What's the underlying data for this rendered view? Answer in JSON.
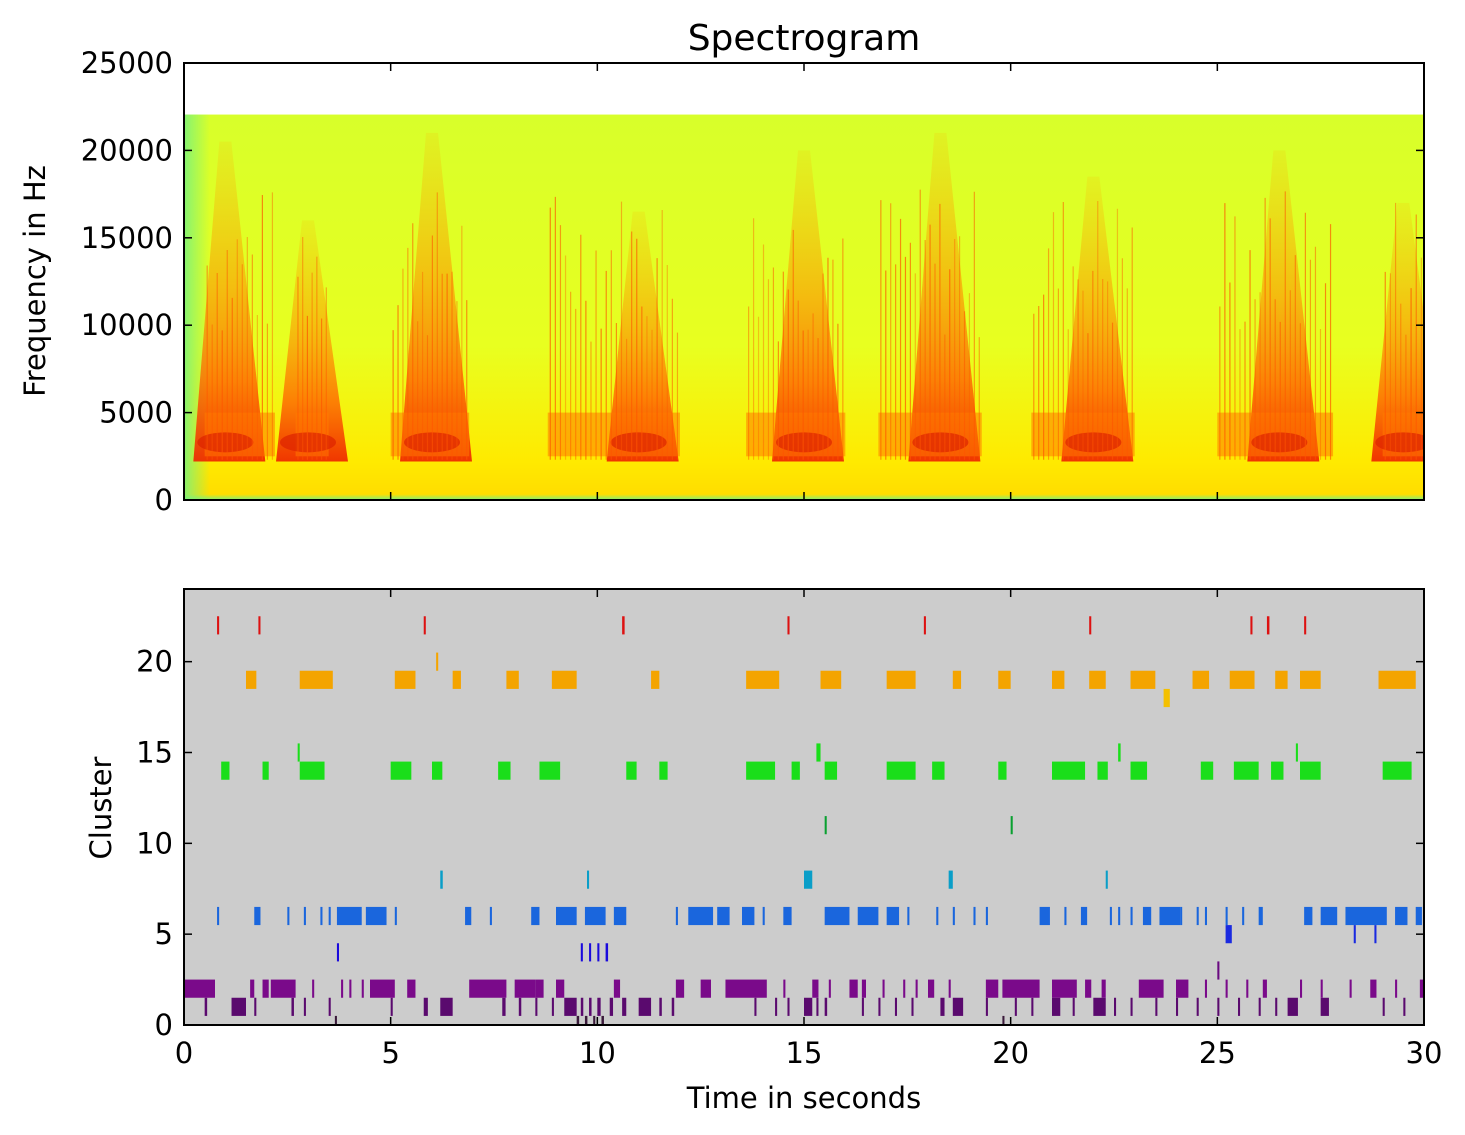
{
  "chart_data": [
    {
      "type": "heatmap",
      "title": "Spectrogram",
      "xlabel": "",
      "ylabel": "Frequency in Hz",
      "xlim": [
        0,
        30
      ],
      "ylim": [
        0,
        25000
      ],
      "max_frequency": 22050,
      "yticks": [
        0,
        5000,
        10000,
        15000,
        20000,
        25000
      ],
      "yticklabels": [
        "0",
        "5000",
        "10000",
        "15000",
        "20000",
        "25000"
      ],
      "colormap": [
        "#7cf27a",
        "#ddff22",
        "#ffee00",
        "#ff9900",
        "#ee3300",
        "#cc0000"
      ],
      "background_level": "#ddff22",
      "songs": [
        {
          "start": 0.5,
          "end": 2.2,
          "peak_time": 1.0,
          "peak_freq": 20500
        },
        {
          "start": 2.7,
          "end": 3.5,
          "peak_time": 3.0,
          "peak_freq": 16000
        },
        {
          "start": 5.0,
          "end": 6.9,
          "peak_time": 6.0,
          "peak_freq": 21000
        },
        {
          "start": 8.8,
          "end": 12.0,
          "peak_time": 11.0,
          "peak_freq": 16500
        },
        {
          "start": 13.6,
          "end": 16.0,
          "peak_time": 15.0,
          "peak_freq": 20000
        },
        {
          "start": 16.8,
          "end": 19.3,
          "peak_time": 18.3,
          "peak_freq": 21000
        },
        {
          "start": 20.5,
          "end": 23.0,
          "peak_time": 22.0,
          "peak_freq": 18500
        },
        {
          "start": 25.0,
          "end": 27.8,
          "peak_time": 26.5,
          "peak_freq": 20000
        },
        {
          "start": 29.0,
          "end": 30.0,
          "peak_time": 29.5,
          "peak_freq": 17000
        }
      ]
    },
    {
      "type": "scatter",
      "title": "",
      "xlabel": "Time in seconds",
      "ylabel": "Cluster",
      "xlim": [
        0,
        30
      ],
      "ylim": [
        0,
        24
      ],
      "xticks": [
        0,
        5,
        10,
        15,
        20,
        25,
        30
      ],
      "xticklabels": [
        "0",
        "5",
        "10",
        "15",
        "20",
        "25",
        "30"
      ],
      "yticks": [
        0,
        5,
        10,
        15,
        20
      ],
      "yticklabels": [
        "0",
        "5",
        "10",
        "15",
        "20"
      ],
      "background": "#cccccc",
      "series": [
        {
          "cluster": 0,
          "color": "#3a1a3a",
          "events": [
            [
              3.65,
              0.05
            ],
            [
              9.5,
              0.06
            ],
            [
              9.7,
              0.06
            ],
            [
              9.9,
              0.05
            ],
            [
              10.1,
              0.06
            ],
            [
              19.8,
              0.05
            ]
          ]
        },
        {
          "cluster": 1,
          "color": "#5a0a6e",
          "events": [
            [
              0.5,
              0.06
            ],
            [
              1.15,
              0.35
            ],
            [
              1.7,
              0.05
            ],
            [
              2.6,
              0.06
            ],
            [
              2.9,
              0.05
            ],
            [
              3.5,
              0.05
            ],
            [
              5.0,
              0.05
            ],
            [
              5.8,
              0.1
            ],
            [
              6.2,
              0.3
            ],
            [
              7.7,
              0.08
            ],
            [
              8.1,
              0.06
            ],
            [
              8.5,
              0.05
            ],
            [
              8.9,
              0.05
            ],
            [
              9.2,
              0.3
            ],
            [
              9.6,
              0.06
            ],
            [
              9.8,
              0.06
            ],
            [
              10.0,
              0.08
            ],
            [
              10.3,
              0.08
            ],
            [
              10.6,
              0.1
            ],
            [
              11.0,
              0.3
            ],
            [
              11.5,
              0.06
            ],
            [
              11.8,
              0.06
            ],
            [
              13.8,
              0.05
            ],
            [
              14.3,
              0.05
            ],
            [
              14.6,
              0.05
            ],
            [
              15.0,
              0.2
            ],
            [
              15.3,
              0.05
            ],
            [
              15.5,
              0.06
            ],
            [
              16.4,
              0.05
            ],
            [
              16.8,
              0.05
            ],
            [
              17.2,
              0.05
            ],
            [
              17.6,
              0.05
            ],
            [
              18.3,
              0.1
            ],
            [
              18.6,
              0.25
            ],
            [
              19.4,
              0.05
            ],
            [
              20.1,
              0.05
            ],
            [
              20.5,
              0.05
            ],
            [
              21.0,
              0.2
            ],
            [
              21.5,
              0.05
            ],
            [
              22.0,
              0.3
            ],
            [
              22.5,
              0.05
            ],
            [
              22.9,
              0.05
            ],
            [
              23.5,
              0.05
            ],
            [
              24.0,
              0.05
            ],
            [
              24.5,
              0.05
            ],
            [
              25.0,
              0.05
            ],
            [
              25.5,
              0.05
            ],
            [
              26.0,
              0.05
            ],
            [
              26.4,
              0.05
            ],
            [
              26.7,
              0.25
            ],
            [
              27.5,
              0.2
            ],
            [
              29.0,
              0.05
            ],
            [
              29.5,
              0.05
            ]
          ]
        },
        {
          "cluster": 2,
          "color": "#7a0a8a",
          "events": [
            [
              0.0,
              0.75
            ],
            [
              1.6,
              0.1
            ],
            [
              1.9,
              0.15
            ],
            [
              2.1,
              0.6
            ],
            [
              3.1,
              0.05
            ],
            [
              3.8,
              0.05
            ],
            [
              4.0,
              0.05
            ],
            [
              4.3,
              0.05
            ],
            [
              4.5,
              0.6
            ],
            [
              5.4,
              0.2
            ],
            [
              6.9,
              0.9
            ],
            [
              8.0,
              0.5
            ],
            [
              8.5,
              0.2
            ],
            [
              9.0,
              0.2
            ],
            [
              10.4,
              0.15
            ],
            [
              11.9,
              0.2
            ],
            [
              12.5,
              0.25
            ],
            [
              13.1,
              1.0
            ],
            [
              14.5,
              0.05
            ],
            [
              15.2,
              0.15
            ],
            [
              15.6,
              0.05
            ],
            [
              16.1,
              0.2
            ],
            [
              16.4,
              0.1
            ],
            [
              16.9,
              0.05
            ],
            [
              17.4,
              0.05
            ],
            [
              17.7,
              0.05
            ],
            [
              18.0,
              0.15
            ],
            [
              18.5,
              0.05
            ],
            [
              19.4,
              0.3
            ],
            [
              19.8,
              0.9
            ],
            [
              21.0,
              0.6
            ],
            [
              21.8,
              0.15
            ],
            [
              22.2,
              0.1
            ],
            [
              23.1,
              0.6
            ],
            [
              24.0,
              0.3
            ],
            [
              24.7,
              0.05
            ],
            [
              25.2,
              0.05
            ],
            [
              25.7,
              0.05
            ],
            [
              26.1,
              0.1
            ],
            [
              27.0,
              0.05
            ],
            [
              27.5,
              0.05
            ],
            [
              28.2,
              0.05
            ],
            [
              28.7,
              0.15
            ],
            [
              29.3,
              0.05
            ],
            [
              29.9,
              0.1
            ]
          ]
        },
        {
          "cluster": 3,
          "color": "#6a0a80",
          "events": [
            [
              25.0,
              0.05
            ]
          ]
        },
        {
          "cluster": 4,
          "color": "#1a0adc",
          "events": [
            [
              3.7,
              0.05
            ],
            [
              9.6,
              0.05
            ],
            [
              9.8,
              0.05
            ],
            [
              10.0,
              0.05
            ],
            [
              10.2,
              0.06
            ]
          ]
        },
        {
          "cluster": 5,
          "color": "#1a2ae0",
          "events": [
            [
              25.2,
              0.15
            ],
            [
              28.3,
              0.05
            ],
            [
              28.8,
              0.05
            ]
          ]
        },
        {
          "cluster": 6,
          "color": "#1a66dd",
          "events": [
            [
              0.8,
              0.05
            ],
            [
              1.7,
              0.15
            ],
            [
              2.5,
              0.05
            ],
            [
              2.9,
              0.05
            ],
            [
              3.3,
              0.05
            ],
            [
              3.5,
              0.05
            ],
            [
              3.7,
              0.6
            ],
            [
              4.4,
              0.5
            ],
            [
              5.1,
              0.05
            ],
            [
              6.8,
              0.15
            ],
            [
              7.4,
              0.05
            ],
            [
              8.4,
              0.2
            ],
            [
              9.0,
              0.5
            ],
            [
              9.7,
              0.5
            ],
            [
              10.4,
              0.3
            ],
            [
              11.9,
              0.05
            ],
            [
              12.2,
              0.6
            ],
            [
              12.9,
              0.3
            ],
            [
              13.5,
              0.3
            ],
            [
              14.0,
              0.05
            ],
            [
              14.5,
              0.2
            ],
            [
              15.5,
              0.6
            ],
            [
              16.3,
              0.5
            ],
            [
              17.0,
              0.3
            ],
            [
              17.5,
              0.05
            ],
            [
              18.2,
              0.05
            ],
            [
              18.6,
              0.05
            ],
            [
              19.1,
              0.05
            ],
            [
              19.4,
              0.05
            ],
            [
              20.7,
              0.25
            ],
            [
              21.3,
              0.05
            ],
            [
              21.7,
              0.15
            ],
            [
              22.4,
              0.05
            ],
            [
              22.6,
              0.05
            ],
            [
              22.9,
              0.05
            ],
            [
              23.2,
              0.2
            ],
            [
              23.6,
              0.5
            ],
            [
              24.1,
              0.05
            ],
            [
              24.5,
              0.05
            ],
            [
              24.7,
              0.05
            ],
            [
              25.2,
              0.05
            ],
            [
              25.6,
              0.05
            ],
            [
              26.0,
              0.1
            ],
            [
              27.1,
              0.2
            ],
            [
              27.5,
              0.4
            ],
            [
              28.1,
              1.0
            ],
            [
              29.3,
              0.3
            ],
            [
              29.8,
              0.15
            ]
          ]
        },
        {
          "cluster": 8,
          "color": "#0a9ec8",
          "events": [
            [
              6.2,
              0.06
            ],
            [
              9.75,
              0.05
            ],
            [
              15.0,
              0.2
            ],
            [
              18.5,
              0.1
            ],
            [
              22.3,
              0.05
            ]
          ]
        },
        {
          "cluster": 11,
          "color": "#0aa030",
          "events": [
            [
              15.5,
              0.05
            ],
            [
              20.0,
              0.05
            ]
          ]
        },
        {
          "cluster": 14,
          "color": "#1ade1a",
          "events": [
            [
              0.9,
              0.2
            ],
            [
              1.9,
              0.15
            ],
            [
              2.8,
              0.6
            ],
            [
              5.0,
              0.5
            ],
            [
              6.0,
              0.25
            ],
            [
              7.6,
              0.3
            ],
            [
              8.6,
              0.5
            ],
            [
              10.7,
              0.25
            ],
            [
              11.5,
              0.2
            ],
            [
              13.6,
              0.7
            ],
            [
              14.7,
              0.2
            ],
            [
              15.5,
              0.3
            ],
            [
              17.0,
              0.7
            ],
            [
              18.1,
              0.3
            ],
            [
              19.7,
              0.2
            ],
            [
              21.0,
              0.8
            ],
            [
              22.1,
              0.25
            ],
            [
              22.9,
              0.4
            ],
            [
              24.6,
              0.3
            ],
            [
              25.4,
              0.6
            ],
            [
              26.3,
              0.3
            ],
            [
              27.0,
              0.5
            ],
            [
              29.0,
              0.7
            ]
          ]
        },
        {
          "cluster": 15,
          "color": "#1ade1a",
          "events": [
            [
              2.75,
              0.05
            ],
            [
              15.3,
              0.1
            ],
            [
              22.6,
              0.06
            ],
            [
              26.9,
              0.05
            ]
          ]
        },
        {
          "cluster": 19,
          "color": "#f4a400",
          "events": [
            [
              1.5,
              0.25
            ],
            [
              2.8,
              0.8
            ],
            [
              5.1,
              0.5
            ],
            [
              6.5,
              0.2
            ],
            [
              7.8,
              0.3
            ],
            [
              8.9,
              0.6
            ],
            [
              11.3,
              0.2
            ],
            [
              13.6,
              0.8
            ],
            [
              15.4,
              0.5
            ],
            [
              17.0,
              0.7
            ],
            [
              18.6,
              0.2
            ],
            [
              19.7,
              0.3
            ],
            [
              21.0,
              0.3
            ],
            [
              21.9,
              0.4
            ],
            [
              22.9,
              0.6
            ],
            [
              24.4,
              0.4
            ],
            [
              25.3,
              0.6
            ],
            [
              26.4,
              0.3
            ],
            [
              27.0,
              0.5
            ],
            [
              28.9,
              0.9
            ]
          ]
        },
        {
          "cluster": 20,
          "color": "#f4a400",
          "events": [
            [
              6.1,
              0.05
            ]
          ]
        },
        {
          "cluster": 18,
          "color": "#f4c000",
          "events": [
            [
              23.7,
              0.15
            ]
          ]
        },
        {
          "cluster": 22,
          "color": "#dd1111",
          "events": [
            [
              0.8,
              0.05
            ],
            [
              1.8,
              0.05
            ],
            [
              5.8,
              0.05
            ],
            [
              10.6,
              0.06
            ],
            [
              14.6,
              0.05
            ],
            [
              17.9,
              0.05
            ],
            [
              21.9,
              0.05
            ],
            [
              25.8,
              0.05
            ],
            [
              26.2,
              0.06
            ],
            [
              27.1,
              0.05
            ]
          ]
        }
      ]
    }
  ]
}
